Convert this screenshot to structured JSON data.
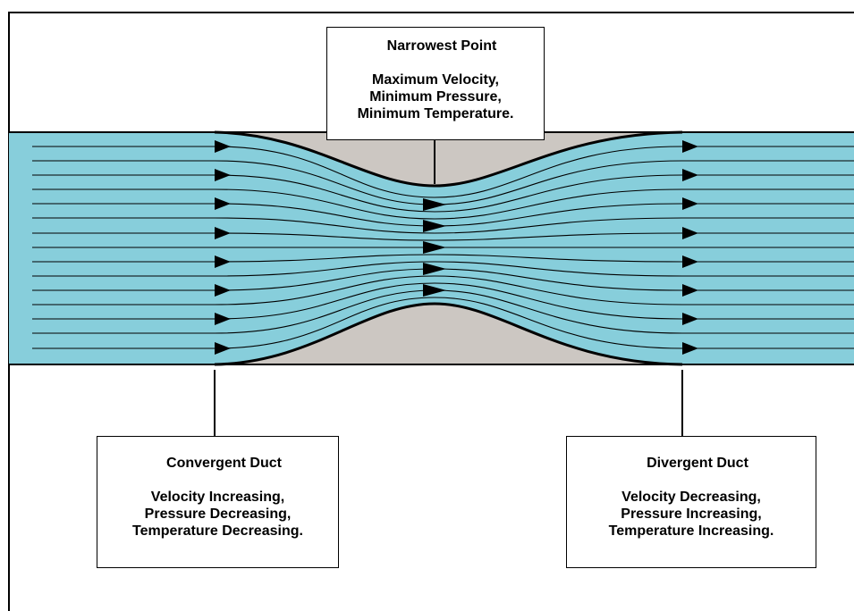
{
  "colors": {
    "flow": "#87CEDB",
    "duct_wall_fill": "#CCC7C2",
    "line": "#000000",
    "background": "#FFFFFF"
  },
  "callouts": {
    "narrowest": {
      "title": "Narrowest Point",
      "lines": [
        "Maximum Velocity,",
        "Minimum Pressure,",
        "Minimum Temperature."
      ]
    },
    "convergent": {
      "title": "Convergent Duct",
      "lines": [
        "Velocity Increasing,",
        "Pressure Decreasing,",
        "Temperature Decreasing."
      ]
    },
    "divergent": {
      "title": "Divergent Duct",
      "lines": [
        "Velocity Decreasing,",
        "Pressure Increasing,",
        "Temperature Increasing."
      ]
    }
  },
  "icons": {
    "flow_arrow": "triangle-right-icon"
  }
}
